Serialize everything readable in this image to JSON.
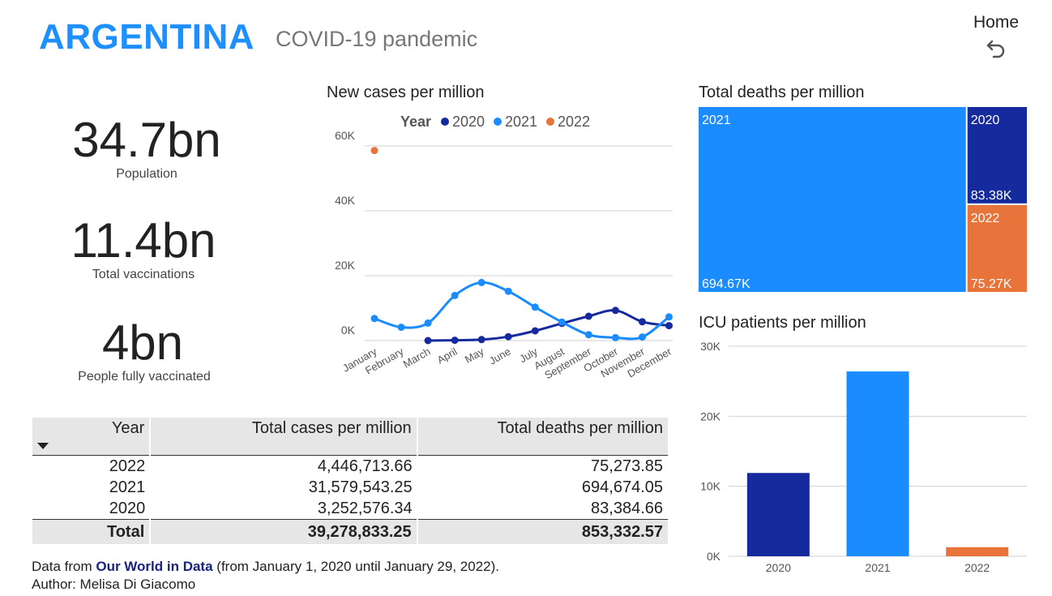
{
  "header": {
    "country": "ARGENTINA",
    "subtitle": "COVID-19 pandemic",
    "home_label": "Home"
  },
  "kpis": [
    {
      "value": "34.7bn",
      "label": "Population"
    },
    {
      "value": "11.4bn",
      "label": "Total vaccinations"
    },
    {
      "value": "4bn",
      "label": "People fully vaccinated"
    }
  ],
  "table": {
    "headers": [
      "Year",
      "Total cases per million",
      "Total deaths per million"
    ],
    "rows": [
      [
        "2022",
        "4,446,713.66",
        "75,273.85"
      ],
      [
        "2021",
        "31,579,543.25",
        "694,674.05"
      ],
      [
        "2020",
        "3,252,576.34",
        "83,384.66"
      ]
    ],
    "total": [
      "Total",
      "39,278,833.25",
      "853,332.57"
    ]
  },
  "footer": {
    "prefix": "Data from ",
    "link": "Our World in Data",
    "suffix": " (from January 1, 2020 until January 29, 2022).",
    "author": "Author: Melisa Di Giacomo"
  },
  "chart_data": [
    {
      "type": "line",
      "title": "New cases per million",
      "legend_title": "Year",
      "legend_position": "top",
      "categories": [
        "January",
        "February",
        "March",
        "April",
        "May",
        "June",
        "July",
        "August",
        "September",
        "October",
        "November",
        "December"
      ],
      "ylim": [
        0,
        60000
      ],
      "yticks": [
        0,
        20000,
        40000,
        60000
      ],
      "ytick_labels": [
        "0K",
        "20K",
        "40K",
        "60K"
      ],
      "grid": true,
      "series": [
        {
          "name": "2020",
          "color": "#152a9c",
          "values": [
            null,
            null,
            0,
            100,
            300,
            1200,
            3000,
            5300,
            7500,
            9300,
            5800,
            4600
          ]
        },
        {
          "name": "2021",
          "color": "#1a8cff",
          "values": [
            6800,
            4100,
            5400,
            13900,
            17900,
            15200,
            10300,
            5700,
            1800,
            900,
            1100,
            7300
          ]
        },
        {
          "name": "2022",
          "color": "#e8743b",
          "values": [
            58600,
            null,
            null,
            null,
            null,
            null,
            null,
            null,
            null,
            null,
            null,
            null
          ]
        }
      ]
    },
    {
      "type": "treemap",
      "title": "Total deaths per million",
      "items": [
        {
          "label": "2021",
          "value": 694670,
          "value_label": "694.67K",
          "color": "#1a8cff"
        },
        {
          "label": "2020",
          "value": 83380,
          "value_label": "83.38K",
          "color": "#152a9c"
        },
        {
          "label": "2022",
          "value": 75270,
          "value_label": "75.27K",
          "color": "#e8743b"
        }
      ]
    },
    {
      "type": "bar",
      "title": "ICU patients per million",
      "categories": [
        "2020",
        "2021",
        "2022"
      ],
      "values": [
        11900,
        26400,
        1300
      ],
      "colors": [
        "#152a9c",
        "#1a8cff",
        "#e8743b"
      ],
      "ylim": [
        0,
        30000
      ],
      "yticks": [
        0,
        10000,
        20000,
        30000
      ],
      "ytick_labels": [
        "0K",
        "10K",
        "20K",
        "30K"
      ],
      "grid": true
    }
  ]
}
